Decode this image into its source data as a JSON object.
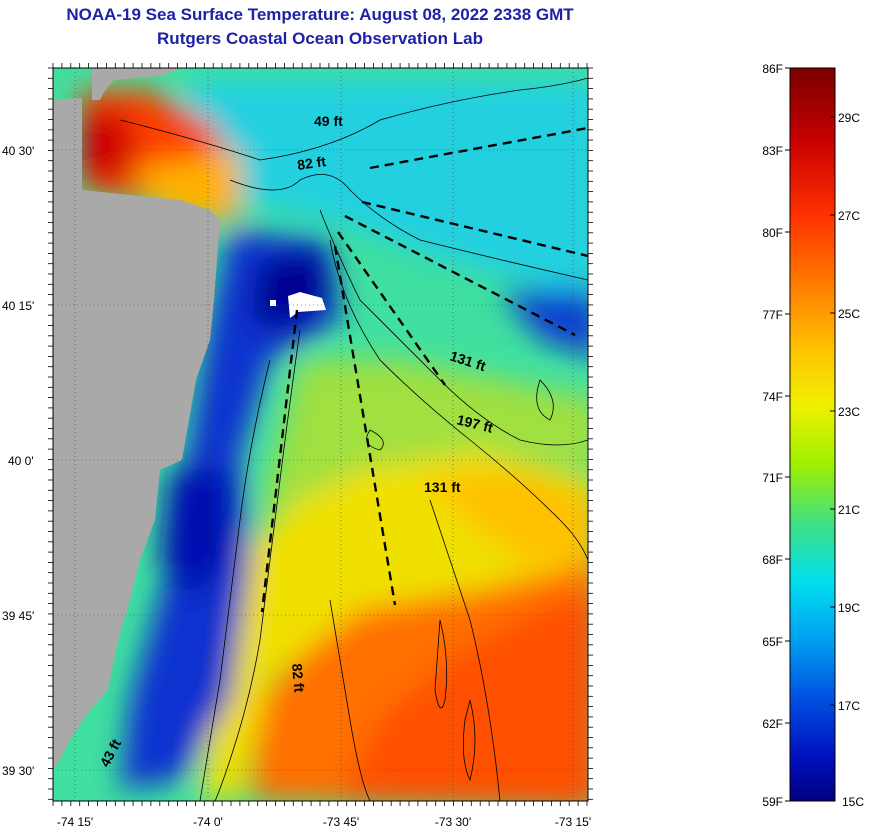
{
  "header": {
    "title_line1": "NOAA-19 Sea Surface Temperature:  August 08, 2022 2338 GMT",
    "title_line2": "Rutgers Coastal Ocean Observation Lab"
  },
  "map": {
    "lat_labels": [
      "40 30'",
      "40 15'",
      "40 0'",
      "39 45'",
      "39 30'"
    ],
    "lon_labels": [
      "-74 15'",
      "-74 0'",
      "-73 45'",
      "-73 30'",
      "-73 15'"
    ],
    "depth_labels": [
      "49 ft",
      "82 ft",
      "131 ft",
      "197 ft",
      "131 ft",
      "82 ft",
      "43 ft"
    ],
    "land_color": "#a9a9a9"
  },
  "colorbar": {
    "fahrenheit": [
      "86F",
      "83F",
      "80F",
      "77F",
      "74F",
      "71F",
      "68F",
      "65F",
      "62F",
      "59F"
    ],
    "celsius": [
      "29C",
      "27C",
      "25C",
      "23C",
      "21C",
      "19C",
      "17C",
      "15C"
    ],
    "colors": [
      "#7a0000",
      "#c80000",
      "#ff3000",
      "#ff8000",
      "#ffc000",
      "#f0f000",
      "#a0f000",
      "#40e080",
      "#00e0f0",
      "#00a0f0",
      "#0050e0",
      "#0010c0",
      "#000080"
    ]
  }
}
